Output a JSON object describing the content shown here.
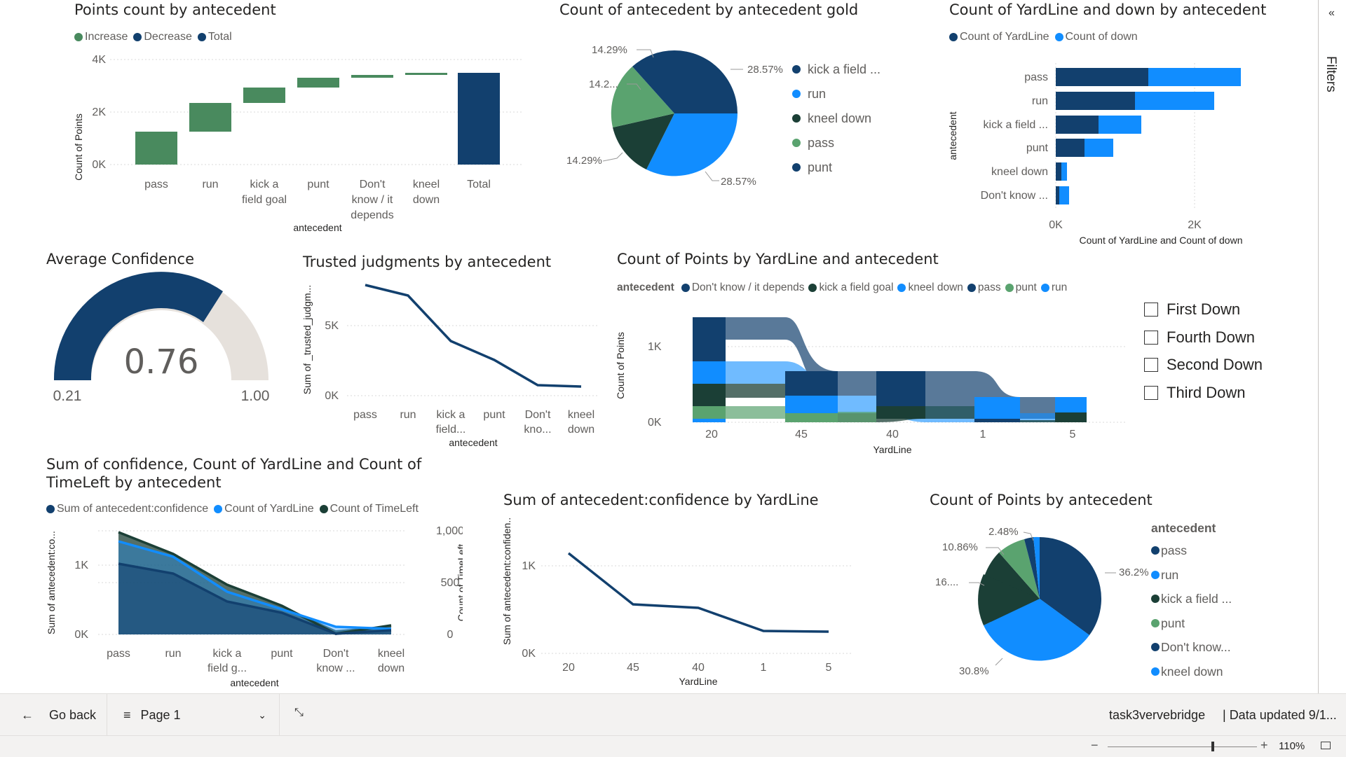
{
  "filters_pane": {
    "label": "Filters"
  },
  "colors": {
    "dark_navy": "#12406e",
    "blue": "#118dff",
    "dark_green": "#1b3f36",
    "green": "#5aa36f",
    "waterfall_green": "#498a5e",
    "gauge_track": "#e6e1dc"
  },
  "v1": {
    "title": "Points count by antecedent",
    "legend": [
      "Increase",
      "Decrease",
      "Total"
    ],
    "ylabel": "Count of Points",
    "xlabel": "antecedent",
    "yticks": [
      "4K",
      "2K",
      "0K"
    ],
    "cats": [
      [
        "pass"
      ],
      [
        "run"
      ],
      [
        "kick a",
        "field goal"
      ],
      [
        "punt"
      ],
      [
        "Don't",
        "know / it",
        "depends"
      ],
      [
        "kneel",
        "down"
      ],
      [
        "Total"
      ]
    ]
  },
  "v2": {
    "title": "Count of antecedent by antecedent gold",
    "labels": [
      "14.29%",
      "14.2...",
      "14.29%",
      "28.57%",
      "28.57%"
    ],
    "legend": [
      "kick a field ...",
      "run",
      "kneel down",
      "pass",
      "punt"
    ]
  },
  "v3": {
    "title": "Count of YardLine and down by antecedent",
    "legend": [
      "Count of YardLine",
      "Count of down"
    ],
    "cats": [
      "pass",
      "run",
      "kick a field ...",
      "punt",
      "kneel down",
      "Don't know ..."
    ],
    "ylabel": "antecedent",
    "xticks": [
      "0K",
      "2K"
    ],
    "xlabel": "Count of YardLine and Count of down"
  },
  "v4": {
    "title": "Average Confidence",
    "value": "0.76",
    "min": "0.21",
    "max": "1.00"
  },
  "v5": {
    "title": "Trusted judgments by antecedent",
    "ylabel": "Sum of _trusted_judgm...",
    "yticks": [
      "5K",
      "0K"
    ],
    "cats": [
      [
        "pass"
      ],
      [
        "run"
      ],
      [
        "kick a",
        "field..."
      ],
      [
        "punt"
      ],
      [
        "Don't",
        "kno..."
      ],
      [
        "kneel",
        "down"
      ]
    ],
    "xlabel": "antecedent"
  },
  "v6": {
    "title": "Count of Points by YardLine and antecedent",
    "legend_title": "antecedent",
    "legend": [
      "Don't know / it depends",
      "kick a field goal",
      "kneel down",
      "pass",
      "punt",
      "run"
    ],
    "ylabel": "Count of Points",
    "yticks": [
      "1K",
      "0K"
    ],
    "xticks": [
      "20",
      "45",
      "40",
      "1",
      "5"
    ],
    "xlabel": "YardLine"
  },
  "slicer": {
    "items": [
      "First Down",
      "Fourth Down",
      "Second Down",
      "Third Down"
    ]
  },
  "v7": {
    "title_line1": "Sum of confidence, Count of YardLine and Count of",
    "title_line2": "TimeLeft by antecedent",
    "legend": [
      "Sum of antecedent:confidence",
      "Count of YardLine",
      "Count of TimeLeft"
    ],
    "ylabel": "Sum of antecedent:co...",
    "y2label": "Count of TimeLeft",
    "yticks": [
      "1K",
      "0K"
    ],
    "y2ticks": [
      "1,000",
      "500",
      "0"
    ],
    "cats": [
      [
        "pass"
      ],
      [
        "run"
      ],
      [
        "kick a",
        "field g..."
      ],
      [
        "punt"
      ],
      [
        "Don't",
        "know ..."
      ],
      [
        "kneel",
        "down"
      ]
    ],
    "xlabel": "antecedent"
  },
  "v8": {
    "title": "Sum of antecedent:confidence by YardLine",
    "ylabel": "Sum of antecedent:confiden...",
    "yticks": [
      "1K",
      "0K"
    ],
    "xticks": [
      "20",
      "45",
      "40",
      "1",
      "5"
    ],
    "xlabel": "YardLine"
  },
  "v9": {
    "title": "Count of Points by antecedent",
    "labels": [
      "2.48%",
      "10.86%",
      "16....",
      "30.8%",
      "36.2%"
    ],
    "legend_title": "antecedent",
    "legend": [
      "pass",
      "run",
      "kick a field ...",
      "punt",
      "Don't know...",
      "kneel down"
    ]
  },
  "footer": {
    "back": "Go back",
    "page": "Page 1",
    "workspace": "task3vervebridge",
    "updated": "Data updated 9/1...",
    "zoom": "110%"
  }
}
